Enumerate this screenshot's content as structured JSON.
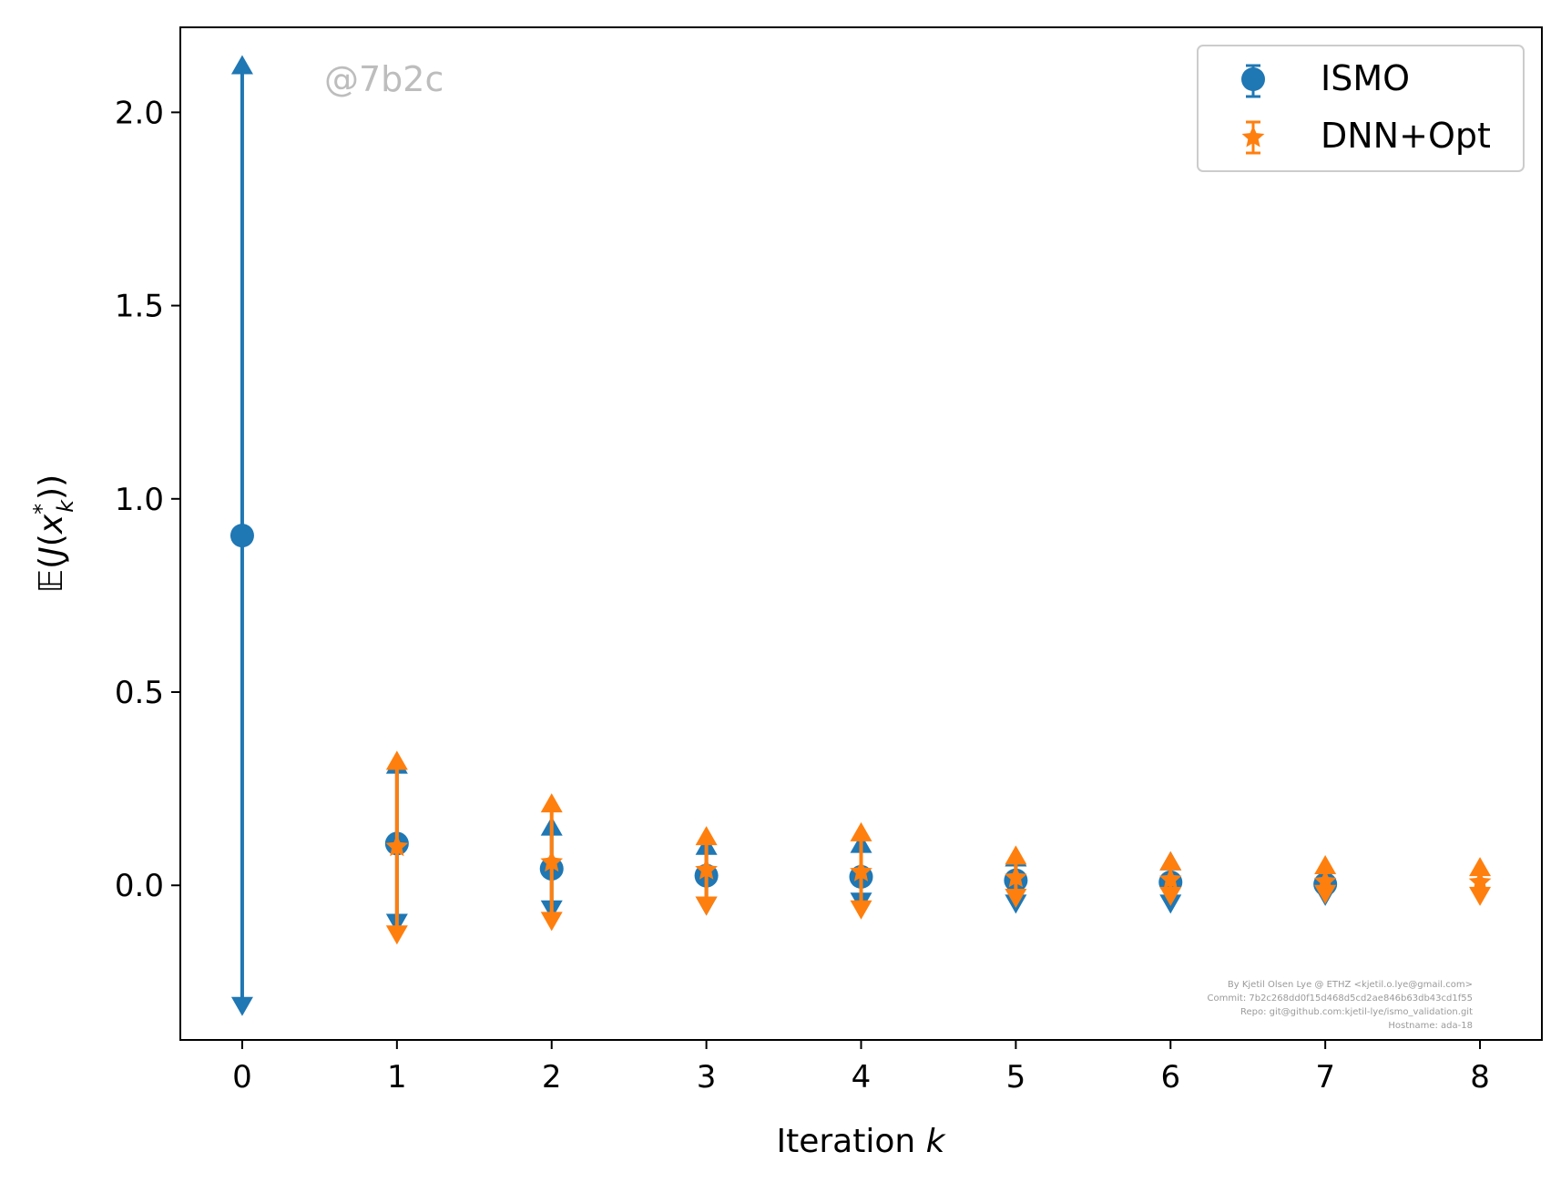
{
  "colors": {
    "ismo": "#1f77b4",
    "dnn_opt": "#ff7f0e",
    "axis": "#000000",
    "watermark": "#bdbdbd"
  },
  "watermark": "@7b2c",
  "footer": {
    "line1": "By Kjetil Olsen Lye @ ETHZ <kjetil.o.lye@gmail.com>",
    "line2": "Commit: 7b2c268dd0f15d468d5cd2ae846b63db43cd1f55",
    "line3": "Repo: git@github.com:kjetil-lye/ismo_validation.git",
    "line4": "Hostname: ada-18"
  },
  "chart_data": {
    "type": "errorbar",
    "xlabel": "Iteration k",
    "ylabel": "𝔼(J(x*_k))",
    "xlim": [
      -0.4,
      8.4
    ],
    "ylim": [
      -0.4,
      2.22
    ],
    "x_ticks": [
      "0",
      "1",
      "2",
      "3",
      "4",
      "5",
      "6",
      "7",
      "8"
    ],
    "y_ticks": [
      "0.0",
      "0.5",
      "1.0",
      "1.5",
      "2.0"
    ],
    "legend_position": "top-right",
    "series": [
      {
        "name": "ISMO",
        "marker": "circle",
        "color": "#1f77b4",
        "x": [
          0,
          1,
          2,
          3,
          4,
          5,
          6,
          7
        ],
        "y": [
          0.905,
          0.108,
          0.043,
          0.025,
          0.022,
          0.013,
          0.008,
          0.003
        ],
        "y_low": [
          -0.31,
          -0.095,
          -0.06,
          -0.05,
          -0.04,
          -0.045,
          -0.045,
          -0.025
        ],
        "y_high": [
          2.12,
          0.31,
          0.15,
          0.1,
          0.105,
          0.07,
          0.06,
          0.03
        ]
      },
      {
        "name": "DNN+Opt",
        "marker": "star",
        "color": "#ff7f0e",
        "x": [
          1,
          2,
          3,
          4,
          5,
          6,
          7,
          8
        ],
        "y": [
          0.1,
          0.06,
          0.04,
          0.035,
          0.02,
          0.015,
          0.01,
          0.008
        ],
        "y_low": [
          -0.125,
          -0.09,
          -0.05,
          -0.06,
          -0.03,
          -0.025,
          -0.02,
          -0.025
        ],
        "y_high": [
          0.32,
          0.21,
          0.125,
          0.135,
          0.075,
          0.06,
          0.05,
          0.045
        ]
      }
    ]
  }
}
